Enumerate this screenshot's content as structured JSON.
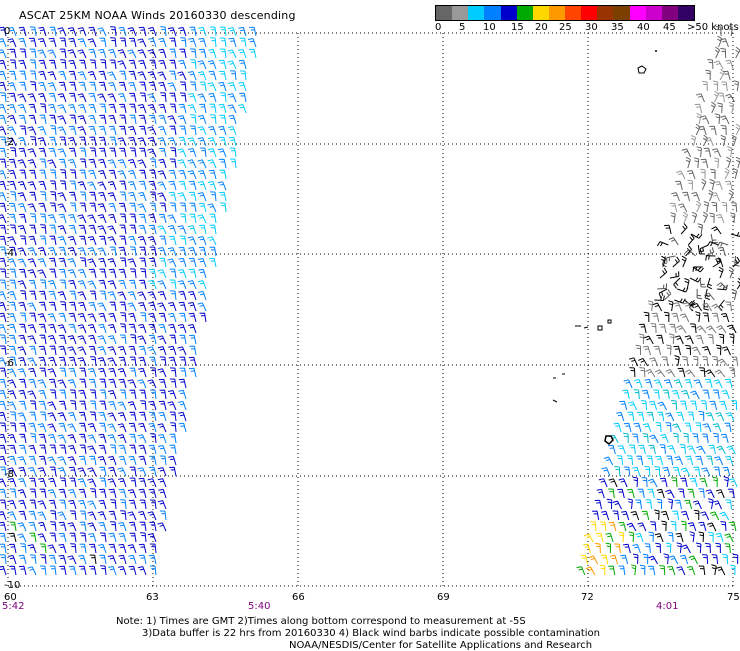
{
  "title": "ASCAT 25KM NOAA Winds 20160330 descending",
  "legend": {
    "colors": [
      "#666666",
      "#999999",
      "#00ccff",
      "#0080ff",
      "#0000cc",
      "#00aa00",
      "#ffd700",
      "#ff9900",
      "#ff4400",
      "#ff0000",
      "#993300",
      "#7b3f00",
      "#ff00ff",
      "#cc00cc",
      "#800080",
      "#330066"
    ],
    "labels": [
      "0",
      "5",
      "10",
      "15",
      "20",
      "25",
      "30",
      "35",
      "40",
      "45",
      ">50 knots"
    ]
  },
  "map": {
    "lon_ticks": [
      "60",
      "63",
      "66",
      "69",
      "72",
      "75"
    ],
    "lat_ticks": [
      "0",
      "-2",
      "-4",
      "-6",
      "-8",
      "-10"
    ],
    "lon_range": [
      60,
      75
    ],
    "lat_range": [
      0,
      -10
    ],
    "grid": "dotted"
  },
  "times": [
    "5:42",
    "5:40",
    "4:01"
  ],
  "notes": [
    "Note: 1) Times are GMT 2)Times along bottom correspond to measurement at -5S",
    "3)Data buffer is 22 hrs from 20160330 4) Black wind barbs indicate possible contamination",
    "NOAA/NESDIS/Center for Satellite Applications and Research"
  ]
}
